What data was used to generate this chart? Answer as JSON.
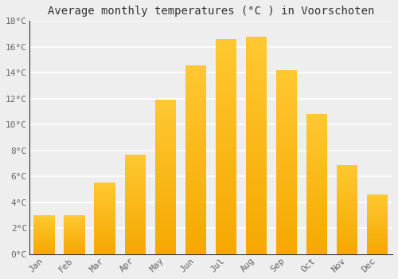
{
  "title": "Average monthly temperatures (°C ) in Voorschoten",
  "months": [
    "Jan",
    "Feb",
    "Mar",
    "Apr",
    "May",
    "Jun",
    "Jul",
    "Aug",
    "Sep",
    "Oct",
    "Nov",
    "Dec"
  ],
  "values": [
    3.0,
    3.0,
    5.5,
    7.7,
    11.9,
    14.6,
    16.6,
    16.8,
    14.2,
    10.8,
    6.9,
    4.6
  ],
  "bar_color_top": "#FFC832",
  "bar_color_bottom": "#F5A800",
  "ylim": [
    0,
    18
  ],
  "yticks": [
    0,
    2,
    4,
    6,
    8,
    10,
    12,
    14,
    16,
    18
  ],
  "ytick_labels": [
    "0°C",
    "2°C",
    "4°C",
    "6°C",
    "8°C",
    "10°C",
    "12°C",
    "14°C",
    "16°C",
    "18°C"
  ],
  "background_color": "#eeeeee",
  "grid_color": "#ffffff",
  "title_fontsize": 10,
  "tick_fontsize": 8,
  "bar_width": 0.7,
  "label_color": "#666666",
  "spine_color": "#333333"
}
